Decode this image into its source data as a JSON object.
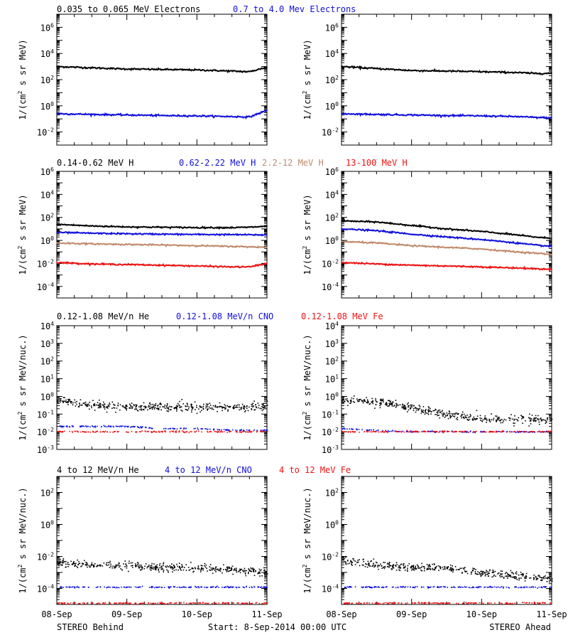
{
  "colors": {
    "black": "#000000",
    "blue": "#1010dd",
    "tan": "#c08a6c",
    "red": "#ee1111"
  },
  "footer": {
    "left": "STEREO Behind",
    "center": "Start:  8-Sep-2014 00:00 UTC",
    "right": "STEREO Ahead"
  },
  "x_ticks": [
    "08-Sep",
    "09-Sep",
    "10-Sep",
    "11-Sep"
  ],
  "chart_data": [
    {
      "type": "line",
      "id": "electrons",
      "ylabel": "1/(cm² s sr MeV)",
      "yscale": "log",
      "ylim": [
        0.001,
        10000000
      ],
      "ytick_exponents": [
        -2,
        0,
        2,
        4,
        6
      ],
      "ytick_labels": [
        "10⁻²",
        "10⁰",
        "10²",
        "10⁴",
        "10⁶"
      ],
      "x": [
        0,
        0.5,
        1,
        1.5,
        2,
        2.5,
        2.75,
        3
      ],
      "legend": [
        {
          "text": "0.035 to 0.065 MeV Electrons",
          "color": "#000000"
        },
        {
          "text": "0.7 to 4.0 Mev Electrons",
          "color": "#1010dd"
        }
      ],
      "panels": [
        {
          "spacecraft": "STEREO Behind",
          "series": [
            {
              "color": "#000000",
              "values": [
                1000,
                800,
                650,
                600,
                550,
                450,
                400,
                900
              ]
            },
            {
              "color": "#1010dd",
              "values": [
                0.25,
                0.22,
                0.2,
                0.18,
                0.17,
                0.15,
                0.14,
                0.45
              ]
            }
          ]
        },
        {
          "spacecraft": "STEREO Ahead",
          "series": [
            {
              "color": "#000000",
              "values": [
                1000,
                700,
                500,
                450,
                400,
                350,
                300,
                300
              ]
            },
            {
              "color": "#1010dd",
              "values": [
                0.25,
                0.22,
                0.2,
                0.18,
                0.17,
                0.15,
                0.13,
                0.12
              ]
            }
          ]
        }
      ]
    },
    {
      "type": "line",
      "id": "protons",
      "ylabel": "1/(cm² s sr MeV)",
      "yscale": "log",
      "ylim": [
        1e-05,
        1000000
      ],
      "ytick_exponents": [
        -4,
        -2,
        0,
        2,
        4,
        6
      ],
      "ytick_labels": [
        "10⁻⁴",
        "10⁻²",
        "10⁰",
        "10²",
        "10⁴",
        "10⁶"
      ],
      "x": [
        0,
        0.5,
        1,
        1.5,
        2,
        2.5,
        2.75,
        3
      ],
      "legend": [
        {
          "text": "0.14-0.62 MeV H",
          "color": "#000000"
        },
        {
          "text": "0.62-2.22 MeV H",
          "color": "#1010dd"
        },
        {
          "text": "2.2-12 MeV H",
          "color": "#c08a6c"
        },
        {
          "text": "13-100 MeV H",
          "color": "#ee1111"
        }
      ],
      "panels": [
        {
          "spacecraft": "STEREO Behind",
          "series": [
            {
              "color": "#000000",
              "values": [
                25,
                18,
                15,
                14,
                13,
                13,
                14,
                17
              ]
            },
            {
              "color": "#1010dd",
              "values": [
                5,
                4.2,
                3.8,
                3.5,
                3.3,
                3.2,
                3.1,
                3
              ]
            },
            {
              "color": "#c08a6c",
              "values": [
                0.6,
                0.5,
                0.45,
                0.4,
                0.35,
                0.3,
                0.28,
                0.25
              ]
            },
            {
              "color": "#ee1111",
              "values": [
                0.012,
                0.009,
                0.008,
                0.007,
                0.006,
                0.005,
                0.005,
                0.01
              ]
            }
          ]
        },
        {
          "spacecraft": "STEREO Ahead",
          "series": [
            {
              "color": "#000000",
              "values": [
                50,
                40,
                20,
                10,
                6,
                3,
                2,
                1.5
              ]
            },
            {
              "color": "#1010dd",
              "values": [
                10,
                7,
                3.5,
                2,
                1.2,
                0.6,
                0.4,
                0.3
              ]
            },
            {
              "color": "#c08a6c",
              "values": [
                0.8,
                0.6,
                0.35,
                0.25,
                0.18,
                0.1,
                0.08,
                0.06
              ]
            },
            {
              "color": "#ee1111",
              "values": [
                0.012,
                0.009,
                0.007,
                0.006,
                0.005,
                0.004,
                0.0035,
                0.003
              ]
            }
          ]
        }
      ]
    },
    {
      "type": "scatter",
      "id": "low-energy-ions",
      "ylabel": "1/(cm² s sr MeV/nuc.)",
      "yscale": "log",
      "ylim": [
        0.001,
        10000
      ],
      "ytick_exponents": [
        -3,
        -2,
        -1,
        0,
        1,
        2,
        3,
        4
      ],
      "ytick_labels": [
        "10⁻³",
        "10⁻²",
        "10⁻¹",
        "10⁰",
        "10¹",
        "10²",
        "10³",
        "10⁴"
      ],
      "x": [
        0,
        0.5,
        1,
        1.5,
        2,
        2.5,
        2.75,
        3
      ],
      "legend": [
        {
          "text": "0.12-1.08 MeV/n He",
          "color": "#000000"
        },
        {
          "text": "0.12-1.08 MeV/n CNO",
          "color": "#1010dd"
        },
        {
          "text": "0.12-1.08 MeV Fe",
          "color": "#ee1111"
        }
      ],
      "panels": [
        {
          "spacecraft": "STEREO Behind",
          "series": [
            {
              "color": "#000000",
              "values": [
                0.6,
                0.3,
                0.25,
                0.25,
                0.25,
                0.25,
                0.25,
                0.3
              ]
            },
            {
              "color": "#1010dd",
              "values": [
                0.02,
                0.02,
                0.02,
                0.015,
                0.015,
                0.012,
                0.012,
                0.012
              ]
            },
            {
              "color": "#ee1111",
              "values": [
                0.01,
                0.01,
                0.01,
                0.01,
                0.01,
                0.01,
                0.01,
                0.01
              ]
            }
          ]
        },
        {
          "spacecraft": "STEREO Ahead",
          "series": [
            {
              "color": "#000000",
              "values": [
                0.6,
                0.5,
                0.2,
                0.1,
                0.05,
                0.05,
                0.05,
                0.05
              ]
            },
            {
              "color": "#1010dd",
              "values": [
                0.015,
                0.012,
                0.01,
                0.01,
                0.01,
                0.01,
                0.01,
                0.01
              ]
            },
            {
              "color": "#ee1111",
              "values": [
                0.01,
                0.01,
                0.01,
                0.01,
                0.01,
                0.01,
                0.01,
                0.01
              ]
            }
          ]
        }
      ]
    },
    {
      "type": "scatter",
      "id": "high-energy-ions",
      "ylabel": "1/(cm² s sr MeV/nuc.)",
      "yscale": "log",
      "ylim": [
        1e-05,
        1000
      ],
      "ytick_exponents": [
        -4,
        -2,
        0,
        2
      ],
      "ytick_labels": [
        "10⁻⁴",
        "10⁻²",
        "10⁰",
        "10²"
      ],
      "x": [
        0,
        0.5,
        1,
        1.5,
        2,
        2.5,
        2.75,
        3
      ],
      "legend": [
        {
          "text": "4 to 12 MeV/n He",
          "color": "#000000"
        },
        {
          "text": "4 to 12 MeV/n CNO",
          "color": "#1010dd"
        },
        {
          "text": "4 to 12 MeV Fe",
          "color": "#ee1111"
        }
      ],
      "panels": [
        {
          "spacecraft": "STEREO Behind",
          "series": [
            {
              "color": "#000000",
              "values": [
                0.004,
                0.003,
                0.0025,
                0.002,
                0.0018,
                0.0015,
                0.0012,
                0.001
              ]
            },
            {
              "color": "#1010dd",
              "values": [
                0.00012,
                0.00012,
                0.00012,
                0.00012,
                0.00012,
                0.00012,
                0.00012,
                0.00012
              ]
            },
            {
              "color": "#ee1111",
              "values": [
                1.2e-05,
                1.2e-05,
                1.2e-05,
                1.2e-05,
                1.2e-05,
                1.2e-05,
                1.2e-05,
                1.2e-05
              ]
            }
          ]
        },
        {
          "spacecraft": "STEREO Ahead",
          "series": [
            {
              "color": "#000000",
              "values": [
                0.005,
                0.003,
                0.002,
                0.0018,
                0.001,
                0.0006,
                0.0005,
                0.0004
              ]
            },
            {
              "color": "#1010dd",
              "values": [
                0.00012,
                0.00012,
                0.00012,
                0.00012,
                0.00012,
                0.00012,
                0.00012,
                0.00012
              ]
            },
            {
              "color": "#ee1111",
              "values": [
                1.2e-05,
                1.2e-05,
                1.2e-05,
                1.2e-05,
                1.2e-05,
                1.2e-05,
                1.2e-05,
                1.2e-05
              ]
            }
          ]
        }
      ]
    }
  ]
}
